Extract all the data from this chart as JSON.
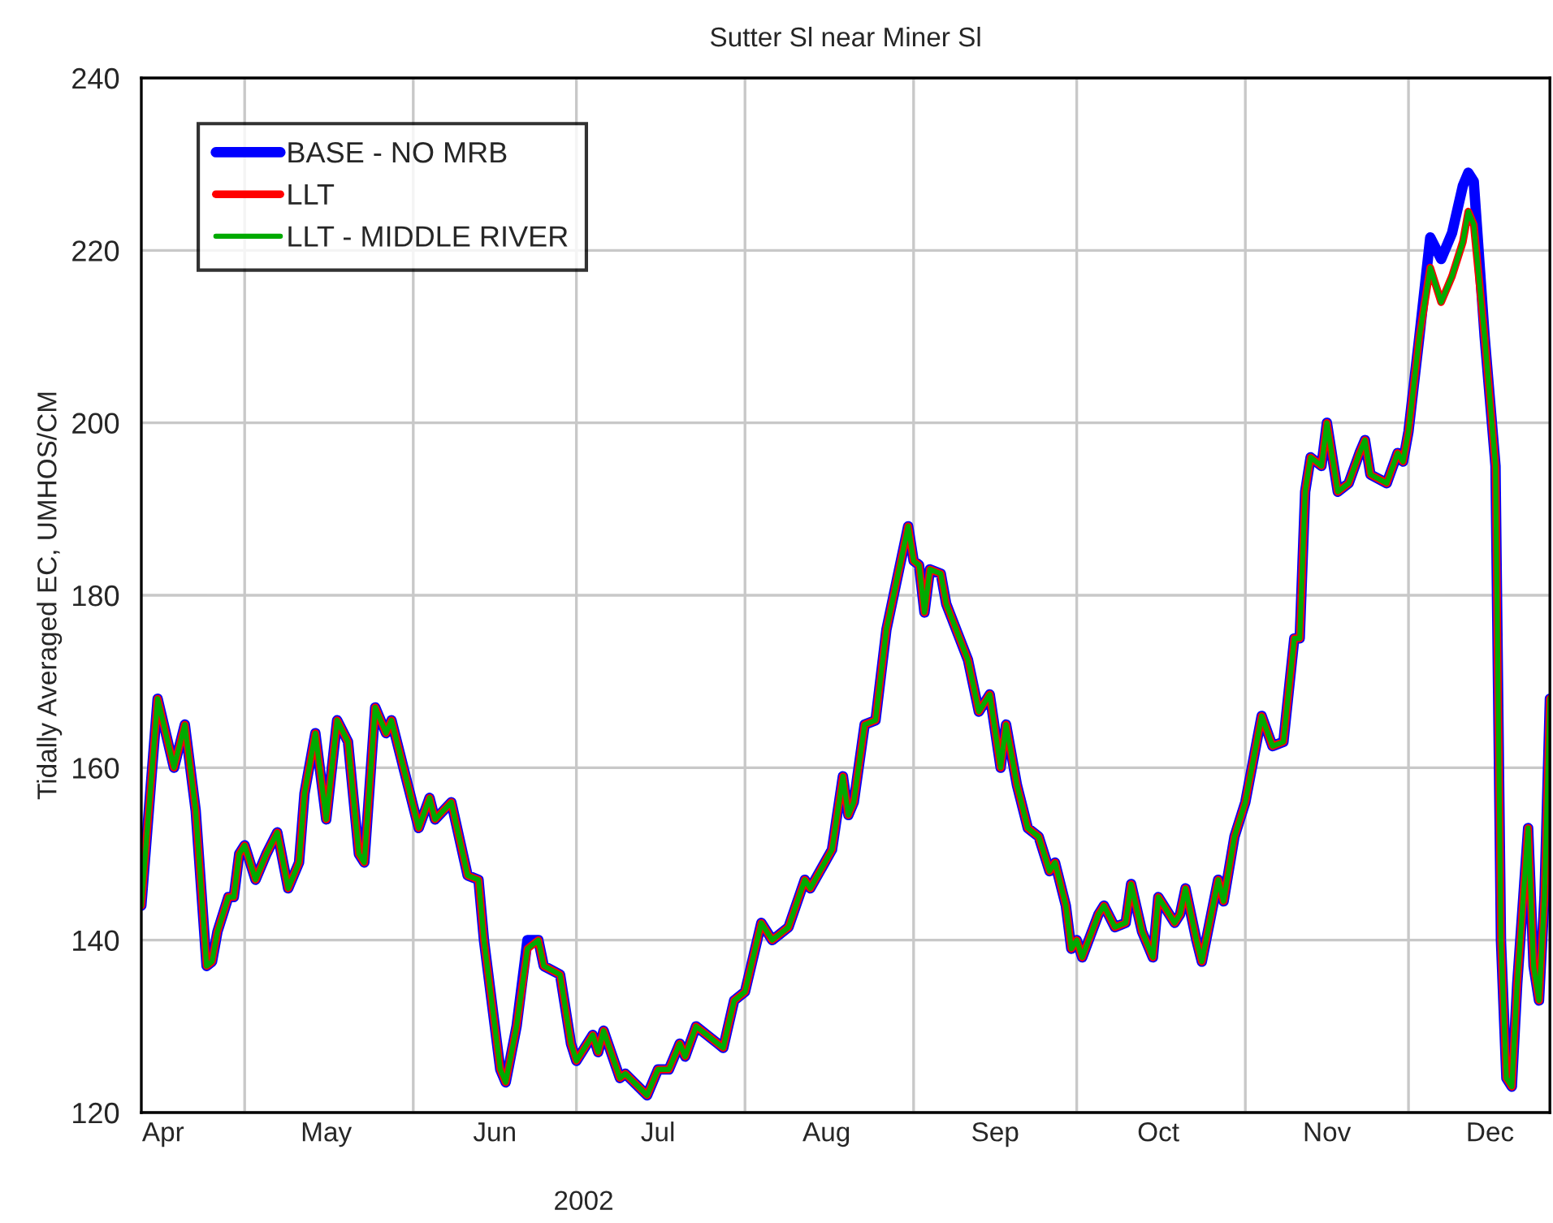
{
  "chart_data": {
    "type": "line",
    "title": "Sutter Sl near Miner Sl",
    "xlabel": "2002",
    "ylabel": "Tidally Averaged EC, UMHOS/CM",
    "x": [
      "2002-04-12",
      "2002-04-15",
      "2002-04-18",
      "2002-04-20",
      "2002-04-22",
      "2002-04-24",
      "2002-04-25",
      "2002-04-26",
      "2002-04-28",
      "2002-04-29",
      "2002-04-30",
      "2002-05-01",
      "2002-05-03",
      "2002-05-05",
      "2002-05-07",
      "2002-05-09",
      "2002-05-11",
      "2002-05-12",
      "2002-05-14",
      "2002-05-16",
      "2002-05-18",
      "2002-05-20",
      "2002-05-22",
      "2002-05-23",
      "2002-05-25",
      "2002-05-27",
      "2002-05-28",
      "2002-05-31",
      "2002-06-02",
      "2002-06-04",
      "2002-06-05",
      "2002-06-08",
      "2002-06-11",
      "2002-06-13",
      "2002-06-14",
      "2002-06-17",
      "2002-06-18",
      "2002-06-20",
      "2002-06-22",
      "2002-06-24",
      "2002-06-25",
      "2002-06-28",
      "2002-06-30",
      "2002-07-01",
      "2002-07-04",
      "2002-07-05",
      "2002-07-06",
      "2002-07-09",
      "2002-07-10",
      "2002-07-14",
      "2002-07-16",
      "2002-07-18",
      "2002-07-20",
      "2002-07-21",
      "2002-07-23",
      "2002-07-27",
      "2002-07-28",
      "2002-07-30",
      "2002-08-01",
      "2002-08-04",
      "2002-08-06",
      "2002-08-09",
      "2002-08-12",
      "2002-08-13",
      "2002-08-17",
      "2002-08-19",
      "2002-08-20",
      "2002-08-21",
      "2002-08-23",
      "2002-08-25",
      "2002-08-27",
      "2002-08-31",
      "2002-09-01",
      "2002-09-02",
      "2002-09-03",
      "2002-09-04",
      "2002-09-06",
      "2002-09-07",
      "2002-09-11",
      "2002-09-13",
      "2002-09-15",
      "2002-09-17",
      "2002-09-18",
      "2002-09-20",
      "2002-09-22",
      "2002-09-24",
      "2002-09-26",
      "2002-09-27",
      "2002-09-29",
      "2002-09-30",
      "2002-10-01",
      "2002-10-02",
      "2002-10-05",
      "2002-10-06",
      "2002-10-08",
      "2002-10-10",
      "2002-10-11",
      "2002-10-13",
      "2002-10-15",
      "2002-10-16",
      "2002-10-19",
      "2002-10-20",
      "2002-10-21",
      "2002-10-23",
      "2002-10-24",
      "2002-10-27",
      "2002-10-28",
      "2002-10-30",
      "2002-11-01",
      "2002-11-04",
      "2002-11-06",
      "2002-11-08",
      "2002-11-10",
      "2002-11-11",
      "2002-11-12",
      "2002-11-13",
      "2002-11-15",
      "2002-11-16",
      "2002-11-18",
      "2002-11-20",
      "2002-11-22",
      "2002-11-23",
      "2002-11-24",
      "2002-11-27",
      "2002-11-29",
      "2002-11-30",
      "2002-12-01",
      "2002-12-03",
      "2002-12-05",
      "2002-12-07",
      "2002-12-09",
      "2002-12-11",
      "2002-12-12",
      "2002-12-13",
      "2002-12-15",
      "2002-12-17",
      "2002-12-18",
      "2002-12-19",
      "2002-12-20",
      "2002-12-21",
      "2002-12-23",
      "2002-12-24",
      "2002-12-25",
      "2002-12-26",
      "2002-12-27"
    ],
    "series": [
      {
        "name": "BASE - NO MRB",
        "color": "#0000ff",
        "values": [
          144,
          168,
          160,
          165,
          155,
          137,
          137.5,
          141,
          145,
          145,
          150,
          151,
          147,
          150,
          152.5,
          146,
          149,
          157,
          164,
          154,
          165.5,
          163,
          150,
          149,
          167,
          164,
          165.5,
          158,
          153,
          156.5,
          154,
          156,
          147.5,
          147,
          140,
          125,
          123.5,
          130,
          140,
          140,
          137,
          136,
          128,
          126,
          129,
          127,
          129.5,
          124,
          124.5,
          122,
          125,
          125,
          128,
          126.5,
          130,
          128,
          127.5,
          133,
          134,
          142,
          140,
          141.5,
          147,
          146,
          150.5,
          159,
          154.5,
          156,
          165,
          165.5,
          176,
          188,
          184,
          183.5,
          178,
          183,
          182.5,
          179,
          172.5,
          166.5,
          168.5,
          160,
          165,
          158,
          153,
          152,
          148,
          149,
          144,
          139,
          140,
          138,
          143,
          144,
          141.5,
          142,
          146.5,
          141,
          138,
          145,
          142,
          143,
          146,
          140,
          137.5,
          147,
          144.5,
          152,
          156,
          166,
          162.5,
          163,
          175,
          175,
          192,
          196,
          195,
          200,
          192,
          193,
          196.5,
          198,
          194,
          193,
          196.5,
          195.5,
          199,
          210,
          221.5,
          219,
          222,
          227.5,
          229,
          228,
          210,
          195,
          140,
          124,
          123,
          135,
          153,
          137,
          133,
          145,
          168
        ]
      },
      {
        "name": "LLT",
        "color": "#ff0000",
        "values": [
          144,
          168,
          160,
          165,
          155,
          137,
          137.5,
          141,
          145,
          145,
          150,
          151,
          147,
          150,
          152.5,
          146,
          149,
          157,
          164,
          154,
          165.5,
          163,
          150,
          149,
          167,
          164,
          165.5,
          158,
          153,
          156.5,
          154,
          156,
          147.5,
          147,
          140,
          125,
          123.5,
          130,
          139,
          140,
          137,
          136,
          128,
          126,
          129,
          127,
          129.5,
          124,
          124.5,
          122,
          125,
          125,
          128,
          126.5,
          130,
          128,
          127.5,
          133,
          134,
          142,
          140,
          141.5,
          147,
          146,
          150.5,
          159,
          154.5,
          156,
          165,
          165.5,
          176,
          188,
          184,
          183.5,
          178,
          183,
          182.5,
          179,
          172.5,
          166.5,
          168.5,
          160,
          165,
          158,
          153,
          152,
          148,
          149,
          144,
          139,
          140,
          138,
          143,
          144,
          141.5,
          142,
          146.5,
          141,
          138,
          145,
          142,
          143,
          146,
          140,
          137.5,
          147,
          144.5,
          152,
          156,
          166,
          162.5,
          163,
          175,
          175,
          192,
          196,
          195,
          200,
          192,
          193,
          196.5,
          198,
          194,
          193,
          196.5,
          195.5,
          199,
          210,
          218,
          214,
          217,
          221,
          224.5,
          223,
          210,
          195,
          140,
          124,
          123,
          135,
          153,
          137,
          133,
          145,
          168
        ]
      },
      {
        "name": "LLT - MIDDLE RIVER",
        "color": "#00aa00",
        "values": [
          144,
          168,
          160,
          165,
          155,
          137,
          137.5,
          141,
          145,
          145,
          150,
          151,
          147,
          150,
          152.5,
          146,
          149,
          157,
          164,
          154,
          165.5,
          163,
          150,
          149,
          167,
          164,
          165.5,
          158,
          153,
          156.5,
          154,
          156,
          147.5,
          147,
          140,
          125,
          123.5,
          130,
          139,
          140,
          137,
          136,
          128,
          126,
          129,
          127,
          129.5,
          124,
          124.5,
          122,
          125,
          125,
          128,
          126.5,
          130,
          128,
          127.5,
          133,
          134,
          142,
          140,
          141.5,
          147,
          146,
          150.5,
          159,
          154.5,
          156,
          165,
          165.5,
          176,
          188,
          184,
          183.5,
          178,
          183,
          182.5,
          179,
          172.5,
          166.5,
          168.5,
          160,
          165,
          158,
          153,
          152,
          148,
          149,
          144,
          139,
          140,
          138,
          143,
          144,
          141.5,
          142,
          146.5,
          141,
          138,
          145,
          142,
          143,
          146,
          140,
          137.5,
          147,
          144.5,
          152,
          156,
          166,
          162.5,
          163,
          175,
          175,
          192,
          196,
          195,
          200,
          192,
          193,
          196.5,
          198,
          194,
          193,
          196.5,
          195.5,
          199,
          210,
          218,
          214,
          217,
          221,
          224.5,
          223,
          210,
          195,
          140,
          124,
          123,
          135,
          153,
          137,
          133,
          145,
          168
        ]
      }
    ],
    "xlim": [
      "2002-04-12",
      "2002-12-27"
    ],
    "xticks": [
      {
        "value": "2002-05-01",
        "label": null
      },
      {
        "value": "2002-06-01",
        "label": null
      },
      {
        "value": "2002-07-01",
        "label": null
      },
      {
        "value": "2002-08-01",
        "label": null
      },
      {
        "value": "2002-09-01",
        "label": null
      },
      {
        "value": "2002-10-01",
        "label": null
      },
      {
        "value": "2002-11-01",
        "label": null
      },
      {
        "value": "2002-12-01",
        "label": null
      },
      {
        "value": "2002-04-16",
        "label": "Apr"
      },
      {
        "value": "2002-05-16",
        "label": "May"
      },
      {
        "value": "2002-06-16",
        "label": "Jun"
      },
      {
        "value": "2002-07-16",
        "label": "Jul"
      },
      {
        "value": "2002-08-16",
        "label": "Aug"
      },
      {
        "value": "2002-09-16",
        "label": "Sep"
      },
      {
        "value": "2002-10-16",
        "label": "Oct"
      },
      {
        "value": "2002-11-16",
        "label": "Nov"
      },
      {
        "value": "2002-12-16",
        "label": "Dec"
      }
    ],
    "ylim": [
      120,
      240
    ],
    "yticks": [
      120,
      140,
      160,
      180,
      200,
      220,
      240
    ],
    "grid": true,
    "legend": "top left",
    "line_style": "solid",
    "marker": "none"
  }
}
